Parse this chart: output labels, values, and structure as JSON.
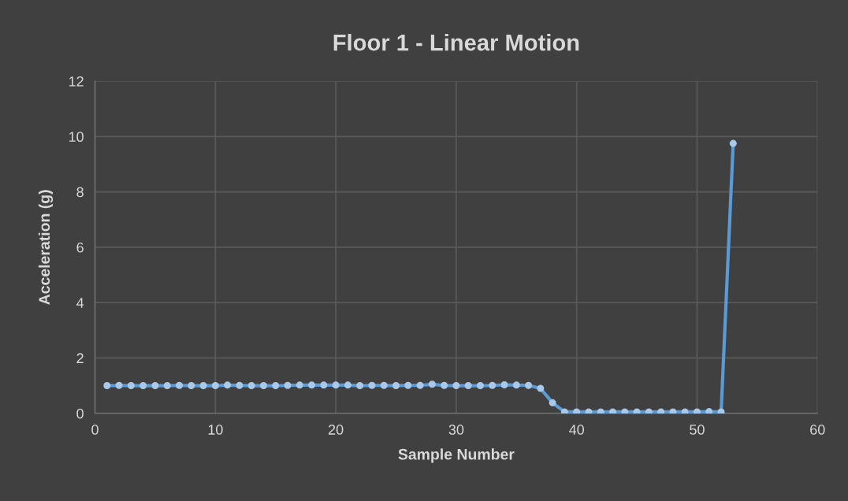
{
  "chart_data": {
    "type": "line",
    "title": "Floor 1 - Linear Motion",
    "xlabel": "Sample Number",
    "ylabel": "Acceleration (g)",
    "x": [
      1,
      2,
      3,
      4,
      5,
      6,
      7,
      8,
      9,
      10,
      11,
      12,
      13,
      14,
      15,
      16,
      17,
      18,
      19,
      20,
      21,
      22,
      23,
      24,
      25,
      26,
      27,
      28,
      29,
      30,
      31,
      32,
      33,
      34,
      35,
      36,
      37,
      38,
      39,
      40,
      41,
      42,
      43,
      44,
      45,
      46,
      47,
      48,
      49,
      50,
      51,
      52,
      53
    ],
    "series": [
      {
        "color": "#5b9bd5",
        "values": [
          1.0,
          1.01,
          1.0,
          1.0,
          1.0,
          1.0,
          1.01,
          1.0,
          1.0,
          1.0,
          1.02,
          1.01,
          1.0,
          1.0,
          1.0,
          1.01,
          1.02,
          1.02,
          1.02,
          1.02,
          1.02,
          1.0,
          1.01,
          1.01,
          1.0,
          1.01,
          1.01,
          1.05,
          1.01,
          1.0,
          1.0,
          1.0,
          1.01,
          1.03,
          1.02,
          1.01,
          0.9,
          0.38,
          0.05,
          0.05,
          0.05,
          0.05,
          0.05,
          0.05,
          0.05,
          0.05,
          0.05,
          0.05,
          0.05,
          0.05,
          0.06,
          0.05,
          9.75
        ]
      }
    ],
    "xlim": [
      0,
      60
    ],
    "xticks": [
      0,
      10,
      20,
      30,
      40,
      50,
      60
    ],
    "ylim": [
      0,
      12
    ],
    "yticks": [
      0,
      2,
      4,
      6,
      8,
      10,
      12
    ],
    "grid": true,
    "marker": "circle",
    "line_style": "solid",
    "legend": false
  }
}
